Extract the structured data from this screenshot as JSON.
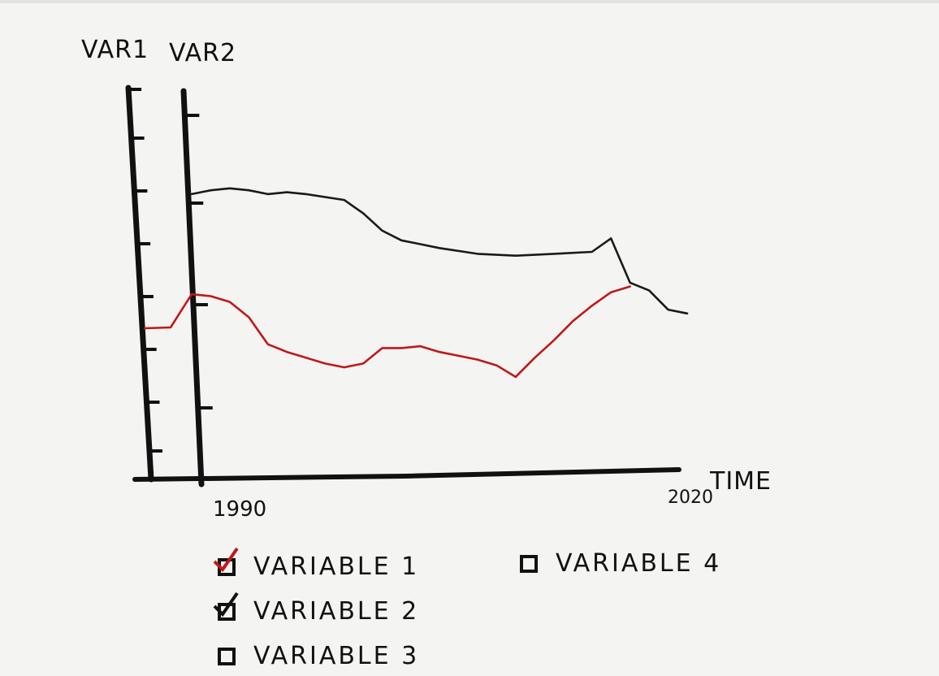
{
  "chart_data": {
    "type": "line",
    "y_axes": [
      {
        "label": "VAR1"
      },
      {
        "label": "VAR2"
      }
    ],
    "xlabel": "TIME",
    "x_tick_labels": [
      "1990",
      "2020"
    ],
    "xlim": [
      1990,
      2020
    ],
    "series": [
      {
        "color": "#1a1a1a",
        "points": [
          [
            1990,
            0.72
          ],
          [
            1991,
            0.73
          ],
          [
            1992,
            0.735
          ],
          [
            1993,
            0.73
          ],
          [
            1994,
            0.72
          ],
          [
            1995,
            0.725
          ],
          [
            1996,
            0.72
          ],
          [
            1998,
            0.705
          ],
          [
            1999,
            0.67
          ],
          [
            2000,
            0.625
          ],
          [
            2001,
            0.6
          ],
          [
            2002,
            0.59
          ],
          [
            2003,
            0.58
          ],
          [
            2005,
            0.565
          ],
          [
            2007,
            0.56
          ],
          [
            2009,
            0.565
          ],
          [
            2011,
            0.57
          ],
          [
            2012,
            0.605
          ],
          [
            2013,
            0.49
          ],
          [
            2014,
            0.47
          ],
          [
            2015,
            0.42
          ],
          [
            2016,
            0.41
          ]
        ]
      },
      {
        "color": "#c01818",
        "points": [
          [
            1990,
            0.46
          ],
          [
            1991,
            0.455
          ],
          [
            1992,
            0.44
          ],
          [
            1993,
            0.4
          ],
          [
            1994,
            0.33
          ],
          [
            1995,
            0.31
          ],
          [
            1996,
            0.295
          ],
          [
            1997,
            0.28
          ],
          [
            1998,
            0.27
          ],
          [
            1999,
            0.28
          ],
          [
            2000,
            0.32
          ],
          [
            2001,
            0.32
          ],
          [
            2002,
            0.325
          ],
          [
            2003,
            0.31
          ],
          [
            2004,
            0.3
          ],
          [
            2005,
            0.29
          ],
          [
            2006,
            0.275
          ],
          [
            2007,
            0.245
          ],
          [
            2008,
            0.295
          ],
          [
            2009,
            0.34
          ],
          [
            2010,
            0.39
          ],
          [
            2011,
            0.43
          ],
          [
            2012,
            0.465
          ],
          [
            2013,
            0.48
          ]
        ]
      }
    ]
  },
  "legend": {
    "items": [
      {
        "label": "VARIABLE 1",
        "checked": true,
        "check_color": "#c01818"
      },
      {
        "label": "VARIABLE 2",
        "checked": true,
        "check_color": "#111111"
      },
      {
        "label": "VARIABLE 3",
        "checked": false
      },
      {
        "label": "VARIABLE 4",
        "checked": false
      }
    ]
  }
}
